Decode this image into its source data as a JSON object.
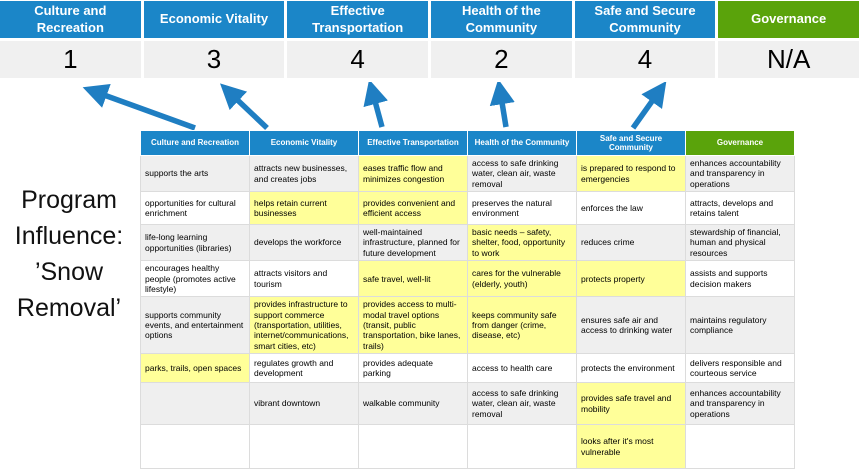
{
  "slide_title": {
    "text": "Program Influence: ’Snow Removal’",
    "lines": [
      "Program",
      "Influence:",
      "’Snow",
      "Removal’"
    ]
  },
  "colors": {
    "header_blue": "#1B86C8",
    "governance_green": "#5AA30B",
    "highlight_yellow": "#FFFF99",
    "row_grey": "#EFEFEF",
    "score_row_bg": "#F0F0F0",
    "arrow_blue": "#1F7EC2"
  },
  "summary": {
    "columns": [
      {
        "label": "Culture and Recreation",
        "score": "1",
        "color_key": "blue"
      },
      {
        "label": "Economic Vitality",
        "score": "3",
        "color_key": "blue"
      },
      {
        "label": "Effective Transportation",
        "score": "4",
        "color_key": "blue"
      },
      {
        "label": "Health of the Community",
        "score": "2",
        "color_key": "blue"
      },
      {
        "label": "Safe and Secure Community",
        "score": "4",
        "color_key": "blue"
      },
      {
        "label": "Governance",
        "score": "N/A",
        "color_key": "green"
      }
    ]
  },
  "matrix": {
    "headers": [
      {
        "label": "Culture and Recreation",
        "color_key": "blue"
      },
      {
        "label": "Economic Vitality",
        "color_key": "blue"
      },
      {
        "label": "Effective Transportation",
        "color_key": "blue"
      },
      {
        "label": "Health of the Community",
        "color_key": "blue"
      },
      {
        "label": "Safe and Secure Community",
        "color_key": "blue"
      },
      {
        "label": "Governance",
        "color_key": "green"
      }
    ],
    "rows": [
      {
        "cells": [
          {
            "text": "supports the arts",
            "highlight": false
          },
          {
            "text": "attracts new businesses, and creates jobs",
            "highlight": false
          },
          {
            "text": "eases traffic flow and minimizes congestion",
            "highlight": true
          },
          {
            "text": "access to safe drinking water, clean air, waste removal",
            "highlight": false
          },
          {
            "text": "is prepared to respond to emergencies",
            "highlight": true
          },
          {
            "text": "enhances accountability and transparency in operations",
            "highlight": false
          }
        ]
      },
      {
        "cells": [
          {
            "text": "opportunities for cultural enrichment",
            "highlight": false
          },
          {
            "text": "helps retain current businesses",
            "highlight": true
          },
          {
            "text": "provides convenient and efficient access",
            "highlight": true
          },
          {
            "text": "preserves the natural environment",
            "highlight": false
          },
          {
            "text": "enforces the law",
            "highlight": false
          },
          {
            "text": "attracts, develops and retains talent",
            "highlight": false
          }
        ]
      },
      {
        "cells": [
          {
            "text": "life-long learning opportunities (libraries)",
            "highlight": false
          },
          {
            "text": "develops the workforce",
            "highlight": false
          },
          {
            "text": "well-maintained infrastructure, planned for future development",
            "highlight": false
          },
          {
            "text": "basic needs – safety, shelter, food, opportunity to work",
            "highlight": true
          },
          {
            "text": "reduces crime",
            "highlight": false
          },
          {
            "text": "stewardship of financial, human and physical resources",
            "highlight": false
          }
        ]
      },
      {
        "cells": [
          {
            "text": "encourages healthy people (promotes active lifestyle)",
            "highlight": false
          },
          {
            "text": "attracts visitors and tourism",
            "highlight": false
          },
          {
            "text": "safe travel, well-lit",
            "highlight": true
          },
          {
            "text": "cares for the vulnerable (elderly, youth)",
            "highlight": true
          },
          {
            "text": "protects property",
            "highlight": true
          },
          {
            "text": "assists and supports decision makers",
            "highlight": false
          }
        ]
      },
      {
        "cells": [
          {
            "text": "supports community events, and entertainment options",
            "highlight": false
          },
          {
            "text": "provides infrastructure to support commerce (transportation, utilities, internet/communications, smart cities, etc)",
            "highlight": true
          },
          {
            "text": "provides access to multi-modal travel options (transit, public transportation, bike lanes, trails)",
            "highlight": true
          },
          {
            "text": "keeps community safe from danger (crime, disease, etc)",
            "highlight": true
          },
          {
            "text": "ensures safe air and access to drinking water",
            "highlight": false
          },
          {
            "text": "maintains regulatory compliance",
            "highlight": false
          }
        ]
      },
      {
        "cells": [
          {
            "text": "parks, trails, open spaces",
            "highlight": true
          },
          {
            "text": "regulates growth and development",
            "highlight": false
          },
          {
            "text": "provides adequate parking",
            "highlight": false
          },
          {
            "text": "access to health care",
            "highlight": false
          },
          {
            "text": "protects the environment",
            "highlight": false
          },
          {
            "text": "delivers responsible and courteous service",
            "highlight": false
          }
        ]
      },
      {
        "cells": [
          {
            "text": "",
            "highlight": false
          },
          {
            "text": "vibrant downtown",
            "highlight": false
          },
          {
            "text": "walkable community",
            "highlight": false
          },
          {
            "text": "access to safe drinking water, clean air, waste removal",
            "highlight": false
          },
          {
            "text": "provides safe travel and mobility",
            "highlight": true
          },
          {
            "text": "enhances accountability and transparency in operations",
            "highlight": false
          }
        ]
      },
      {
        "cells": [
          {
            "text": "",
            "highlight": false
          },
          {
            "text": "",
            "highlight": false
          },
          {
            "text": "",
            "highlight": false
          },
          {
            "text": "",
            "highlight": false
          },
          {
            "text": "looks after it's most vulnerable",
            "highlight": true
          },
          {
            "text": "",
            "highlight": false
          }
        ]
      }
    ]
  }
}
